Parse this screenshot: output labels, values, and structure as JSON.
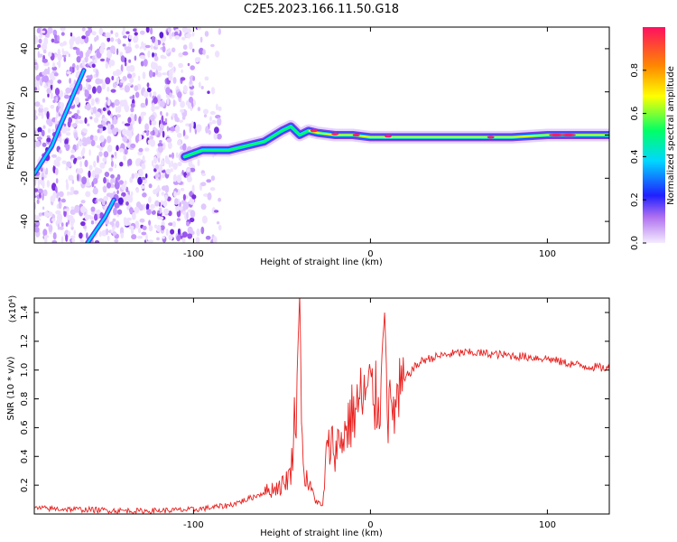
{
  "title": "C2E5.2023.166.11.50.G18",
  "chart_data": [
    {
      "type": "heatmap",
      "xlabel": "Height of straight line (km)",
      "ylabel": "Frequency (Hz)",
      "xlim": [
        -190,
        135
      ],
      "ylim": [
        -50,
        50
      ],
      "xticks": [
        -100,
        0,
        100
      ],
      "yticks": [
        -40,
        -20,
        0,
        20,
        40
      ],
      "grid": false,
      "colorbar": {
        "label": "Normalized spectral amplitude",
        "range": [
          0,
          1
        ],
        "ticks": [
          "0.0",
          "0.2",
          "0.4",
          "0.6",
          "0.8"
        ],
        "colors": [
          "#e8d8ff",
          "#8a2be2",
          "#1e40ff",
          "#00d8ff",
          "#00ff66",
          "#ffff00",
          "#ff8800",
          "#ff2060"
        ]
      },
      "traces": [
        {
          "name": "ridge",
          "x": [
            -105,
            -95,
            -80,
            -70,
            -60,
            -50,
            -45,
            -40,
            -35,
            -30,
            -20,
            -10,
            0,
            20,
            40,
            60,
            80,
            100,
            120,
            135
          ],
          "y": [
            -10,
            -7,
            -7,
            -5,
            -3,
            2,
            4,
            0,
            2,
            1,
            0,
            0,
            -1,
            -1,
            -1,
            -1,
            -1,
            0,
            0,
            0
          ]
        },
        {
          "name": "streak-upper-left",
          "x": [
            -190,
            -180,
            -175,
            -162
          ],
          "y": [
            -18,
            -5,
            5,
            30
          ]
        },
        {
          "name": "streak-lower",
          "x": [
            -160,
            -150,
            -145
          ],
          "y": [
            -50,
            -38,
            -30
          ]
        }
      ]
    },
    {
      "type": "line",
      "xlabel": "Height of straight line (km)",
      "ylabel": "SNR (10 * v/v)",
      "y_multiplier": "(x10⁴)",
      "xlim": [
        -190,
        135
      ],
      "ylim": [
        0,
        1.5
      ],
      "xticks": [
        -100,
        0,
        100
      ],
      "yticks": [
        "0.2",
        "0.4",
        "0.6",
        "0.8",
        "1.0",
        "1.2",
        "1.4"
      ],
      "grid": false,
      "series": [
        {
          "name": "SNR",
          "color": "#e8201e",
          "x": [
            -190,
            -160,
            -130,
            -100,
            -80,
            -70,
            -60,
            -50,
            -45,
            -42,
            -40,
            -38,
            -35,
            -30,
            -27,
            -25,
            -22,
            -20,
            -15,
            -10,
            -5,
            0,
            5,
            8,
            10,
            15,
            20,
            25,
            30,
            40,
            50,
            60,
            70,
            80,
            90,
            100,
            110,
            120,
            135
          ],
          "y": [
            0.04,
            0.03,
            0.02,
            0.03,
            0.06,
            0.1,
            0.15,
            0.2,
            0.28,
            0.8,
            1.5,
            0.3,
            0.2,
            0.08,
            0.05,
            0.4,
            0.5,
            0.45,
            0.55,
            0.7,
            0.8,
            0.85,
            0.75,
            1.42,
            0.7,
            0.75,
            0.95,
            1.02,
            1.07,
            1.1,
            1.12,
            1.12,
            1.11,
            1.1,
            1.09,
            1.08,
            1.05,
            1.03,
            1.01
          ]
        }
      ]
    }
  ]
}
